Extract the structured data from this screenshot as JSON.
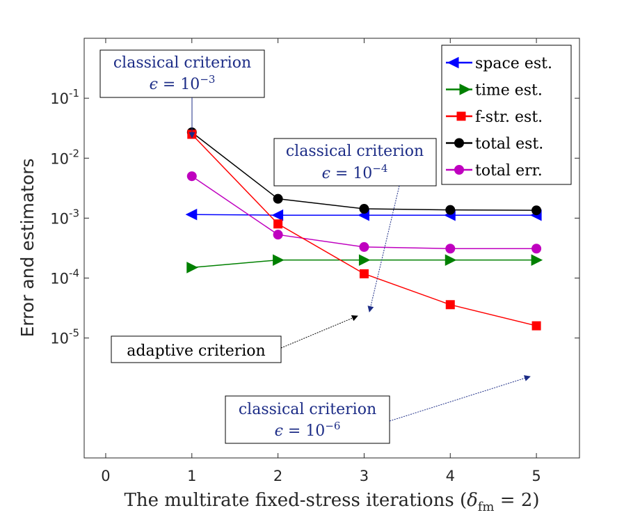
{
  "chart_data": {
    "type": "line",
    "yscale": "log",
    "xlabel": "The multirate fixed-stress iterations (δfm = 2)",
    "xlabel_parts": {
      "main": "The multirate fixed-stress iterations (",
      "delta": "δ",
      "sub": "fm",
      "tail": " = 2)"
    },
    "ylabel": "Error and estimators",
    "xlim": [
      -0.25,
      5.5
    ],
    "ylim": [
      1e-07,
      1
    ],
    "xticks": [
      0,
      1,
      2,
      3,
      4,
      5
    ],
    "xtick_labels": [
      "0",
      "1",
      "2",
      "3",
      "4",
      "5"
    ],
    "yticks": [
      {
        "value": 0.1,
        "base": "10",
        "exp": "-1"
      },
      {
        "value": 0.01,
        "base": "10",
        "exp": "-2"
      },
      {
        "value": 0.001,
        "base": "10",
        "exp": "-3"
      },
      {
        "value": 0.0001,
        "base": "10",
        "exp": "-4"
      },
      {
        "value": 1e-05,
        "base": "10",
        "exp": "-5"
      }
    ],
    "x": [
      1,
      2,
      3,
      4,
      5
    ],
    "series": [
      {
        "name": "space est.",
        "color": "#0000ff",
        "marker": "triangle-left",
        "values": [
          0.00115,
          0.00112,
          0.00112,
          0.00112,
          0.00112
        ]
      },
      {
        "name": "time est.",
        "color": "#008000",
        "marker": "triangle-right",
        "values": [
          0.00015,
          0.0002,
          0.0002,
          0.0002,
          0.0002
        ]
      },
      {
        "name": "f-str. est.",
        "color": "#ff0000",
        "marker": "square",
        "values": [
          0.025,
          0.0008,
          0.000118,
          3.6e-05,
          1.6e-05
        ]
      },
      {
        "name": "total est.",
        "color": "#000000",
        "marker": "circle",
        "values": [
          0.027,
          0.0021,
          0.00143,
          0.00137,
          0.00135
        ]
      },
      {
        "name": "total err.",
        "color": "#bf00bf",
        "marker": "circle",
        "values": [
          0.005,
          0.00053,
          0.00033,
          0.00031,
          0.00031
        ]
      }
    ],
    "legend_position": "top-right",
    "annotations": [
      {
        "line1": "classical criterion",
        "line2": {
          "eps": "ϵ",
          "eq": " = ",
          "base": "10",
          "exp": "−3"
        },
        "color": "#1c2c86",
        "target": {
          "x": 1,
          "y": 0.027
        }
      },
      {
        "line1": "classical criterion",
        "line2": {
          "eps": "ϵ",
          "eq": " = ",
          "base": "10",
          "exp": "−4"
        },
        "color": "#1c2c86",
        "target": {
          "x": 3,
          "y": 0.000118
        }
      },
      {
        "line1": "adaptive criterion",
        "line2": null,
        "color": "#000000",
        "target": {
          "x": 3,
          "y": 0.000118
        }
      },
      {
        "line1": "classical criterion",
        "line2": {
          "eps": "ϵ",
          "eq": " = ",
          "base": "10",
          "exp": "−6"
        },
        "color": "#1c2c86",
        "target": {
          "x": 5,
          "y": 1.6e-05
        }
      }
    ]
  }
}
